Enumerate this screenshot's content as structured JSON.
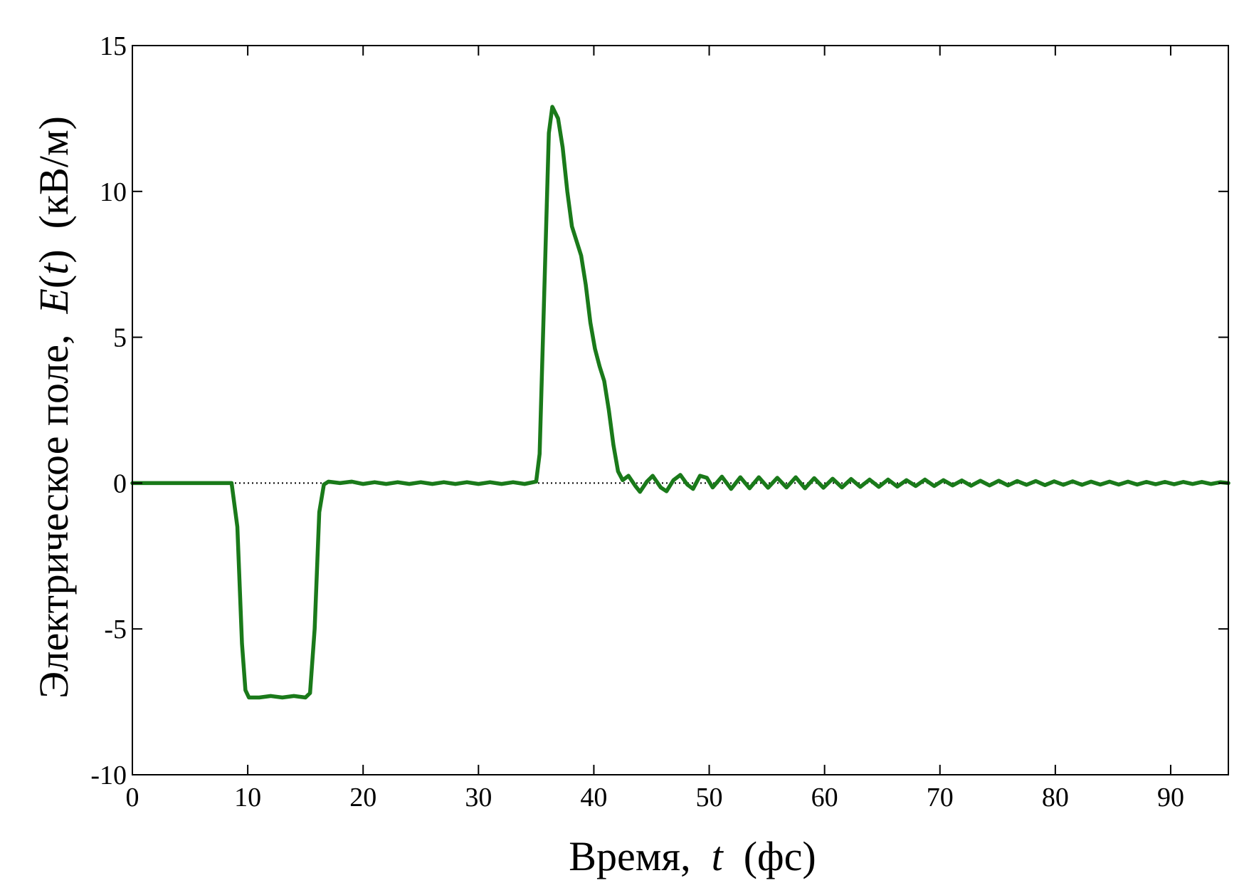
{
  "chart_data": {
    "type": "line",
    "xlabel_parts": {
      "prefix": "Время,  ",
      "var": "t",
      "suffix": "  (фс)"
    },
    "ylabel_parts": {
      "prefix": "Электрическое поле,  ",
      "var_main": "E",
      "var_open": "(",
      "var_arg": "t",
      "var_close": ")",
      "suffix": "  (кВ/м)"
    },
    "xlim": [
      0,
      95
    ],
    "ylim": [
      -10,
      15
    ],
    "xticks": [
      0,
      10,
      20,
      30,
      40,
      50,
      60,
      70,
      80,
      90
    ],
    "xtick_labels": [
      "0",
      "10",
      "20",
      "30",
      "40",
      "50",
      "60",
      "70",
      "80",
      "90"
    ],
    "yticks": [
      -10,
      -5,
      0,
      5,
      10,
      15
    ],
    "ytick_labels": [
      "-10",
      "-5",
      "0",
      "5",
      "10",
      "15"
    ],
    "grid": false,
    "reference_line": {
      "y": 0,
      "style": "dotted",
      "color": "#000000"
    },
    "series": [
      {
        "color": "#1a7a1a",
        "points": [
          [
            0,
            0
          ],
          [
            8.6,
            0
          ],
          [
            9.1,
            -1.5
          ],
          [
            9.5,
            -5.5
          ],
          [
            9.8,
            -7.1
          ],
          [
            10.1,
            -7.35
          ],
          [
            11,
            -7.35
          ],
          [
            12,
            -7.3
          ],
          [
            13,
            -7.35
          ],
          [
            14,
            -7.3
          ],
          [
            15,
            -7.35
          ],
          [
            15.4,
            -7.2
          ],
          [
            15.8,
            -5.0
          ],
          [
            16.2,
            -1.0
          ],
          [
            16.6,
            -0.05
          ],
          [
            17,
            0.05
          ],
          [
            18,
            0.0
          ],
          [
            19,
            0.05
          ],
          [
            20,
            -0.03
          ],
          [
            21,
            0.03
          ],
          [
            22,
            -0.03
          ],
          [
            23,
            0.03
          ],
          [
            24,
            -0.03
          ],
          [
            25,
            0.03
          ],
          [
            26,
            -0.03
          ],
          [
            27,
            0.03
          ],
          [
            28,
            -0.03
          ],
          [
            29,
            0.03
          ],
          [
            30,
            -0.03
          ],
          [
            31,
            0.03
          ],
          [
            32,
            -0.03
          ],
          [
            33,
            0.03
          ],
          [
            34,
            -0.03
          ],
          [
            35,
            0.05
          ],
          [
            35.3,
            1.0
          ],
          [
            35.7,
            6.5
          ],
          [
            36.1,
            12.0
          ],
          [
            36.4,
            12.9
          ],
          [
            36.9,
            12.5
          ],
          [
            37.3,
            11.5
          ],
          [
            37.7,
            10.0
          ],
          [
            38.1,
            8.8
          ],
          [
            38.5,
            8.3
          ],
          [
            38.9,
            7.8
          ],
          [
            39.3,
            6.8
          ],
          [
            39.7,
            5.5
          ],
          [
            40.1,
            4.6
          ],
          [
            40.5,
            4.0
          ],
          [
            40.9,
            3.5
          ],
          [
            41.3,
            2.5
          ],
          [
            41.7,
            1.3
          ],
          [
            42.1,
            0.4
          ],
          [
            42.5,
            0.1
          ],
          [
            43,
            0.25
          ],
          [
            43.6,
            -0.1
          ],
          [
            44,
            -0.3
          ],
          [
            44.6,
            0.05
          ],
          [
            45.1,
            0.25
          ],
          [
            45.8,
            -0.15
          ],
          [
            46.3,
            -0.28
          ],
          [
            46.9,
            0.1
          ],
          [
            47.5,
            0.28
          ],
          [
            48.1,
            -0.05
          ],
          [
            48.6,
            -0.2
          ],
          [
            49.2,
            0.25
          ],
          [
            49.8,
            0.18
          ],
          [
            50.3,
            -0.15
          ],
          [
            51.1,
            0.22
          ],
          [
            51.9,
            -0.2
          ],
          [
            52.7,
            0.2
          ],
          [
            53.5,
            -0.18
          ],
          [
            54.3,
            0.2
          ],
          [
            55.1,
            -0.16
          ],
          [
            55.9,
            0.18
          ],
          [
            56.7,
            -0.15
          ],
          [
            57.5,
            0.2
          ],
          [
            58.3,
            -0.18
          ],
          [
            59.1,
            0.17
          ],
          [
            59.9,
            -0.16
          ],
          [
            60.7,
            0.15
          ],
          [
            61.5,
            -0.15
          ],
          [
            62.3,
            0.14
          ],
          [
            63.1,
            -0.13
          ],
          [
            63.9,
            0.12
          ],
          [
            64.7,
            -0.13
          ],
          [
            65.5,
            0.12
          ],
          [
            66.3,
            -0.12
          ],
          [
            67.1,
            0.1
          ],
          [
            67.9,
            -0.1
          ],
          [
            68.7,
            0.12
          ],
          [
            69.5,
            -0.1
          ],
          [
            70.3,
            0.1
          ],
          [
            71.1,
            -0.08
          ],
          [
            71.9,
            0.09
          ],
          [
            72.7,
            -0.09
          ],
          [
            73.5,
            0.08
          ],
          [
            74.3,
            -0.08
          ],
          [
            75.1,
            0.08
          ],
          [
            75.9,
            -0.08
          ],
          [
            76.7,
            0.07
          ],
          [
            77.5,
            -0.06
          ],
          [
            78.3,
            0.07
          ],
          [
            79.1,
            -0.07
          ],
          [
            79.9,
            0.06
          ],
          [
            80.7,
            -0.06
          ],
          [
            81.5,
            0.06
          ],
          [
            82.3,
            -0.06
          ],
          [
            83.1,
            0.05
          ],
          [
            83.9,
            -0.05
          ],
          [
            84.7,
            0.05
          ],
          [
            85.5,
            -0.05
          ],
          [
            86.3,
            0.05
          ],
          [
            87.1,
            -0.05
          ],
          [
            87.9,
            0.04
          ],
          [
            88.7,
            -0.04
          ],
          [
            89.5,
            0.04
          ],
          [
            90.3,
            -0.04
          ],
          [
            91.1,
            0.04
          ],
          [
            91.9,
            -0.03
          ],
          [
            92.7,
            0.04
          ],
          [
            93.5,
            -0.03
          ],
          [
            94.3,
            0.03
          ],
          [
            95,
            0
          ]
        ]
      }
    ]
  }
}
